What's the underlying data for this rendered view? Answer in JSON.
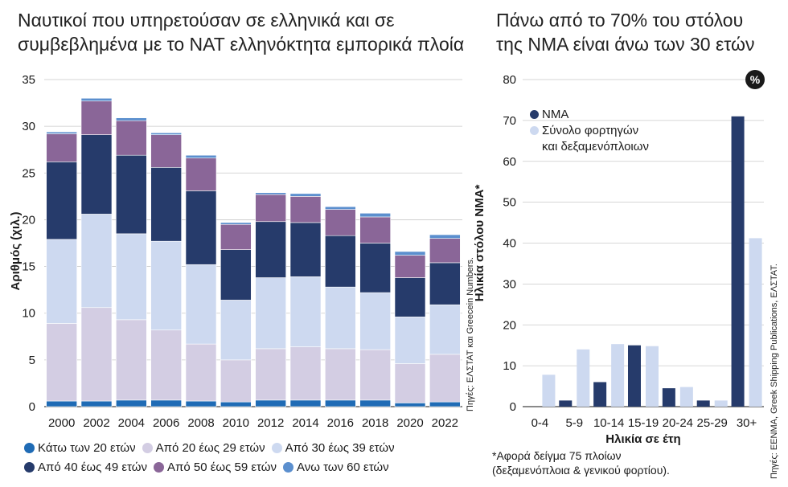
{
  "left": {
    "title_line1": "Ναυτικοί που υπηρετούσαν σε ελληνικά και σε",
    "title_line2": "συμβεβλημένα με το ΝΑΤ ελληνόκτητα εμπορικά πλοία",
    "source": "Πηγές: ΕΛΣΤΑΤ και Greecein Numbers."
  },
  "right": {
    "title_line1": "Πάνω  από το 70% του στόλου",
    "title_line2": "της ΝΜΑ είναι άνω των 30 ετών",
    "badge": "%",
    "note_line1": "*Αφορά δείγμα 75 πλοίων",
    "note_line2": "(δεξαμενόπλοια & γενικού φορτίου).",
    "source": "Πηγές: EENMA, Greek Shipping Publications, ΕΛΣΤΑΤ.",
    "legend_line1": "ΝΜΑ",
    "legend_line2a": "Σύνολο φορτηγών",
    "legend_line2b": "και δεξαμενόπλοιων"
  },
  "colors": {
    "lt20": "#1f6bb5",
    "20_29": "#d3cde3",
    "30_39": "#cdd9f0",
    "40_49": "#263b6b",
    "50_59": "#8a6698",
    "gt60": "#5b8fce",
    "nma": "#263b6b",
    "total": "#cdd9f0"
  },
  "chart_data": [
    {
      "type": "bar",
      "stacked": true,
      "title": "Ναυτικοί που υπηρετούσαν σε ελληνικά και σε συμβεβλημένα με το ΝΑΤ ελληνόκτητα εμπορικά πλοία",
      "ylabel": "Αριθμός (χιλ.)",
      "xlabel": "",
      "ylim": [
        0,
        35
      ],
      "yticks": [
        0,
        5,
        10,
        15,
        20,
        25,
        30,
        35
      ],
      "grid": true,
      "categories": [
        "2000",
        "2002",
        "2004",
        "2006",
        "2008",
        "2010",
        "2012",
        "2014",
        "2016",
        "2018",
        "2020",
        "2022"
      ],
      "series": [
        {
          "name": "Κάτω των 20 ετών",
          "key": "lt20",
          "values": [
            0.6,
            0.6,
            0.7,
            0.7,
            0.6,
            0.5,
            0.7,
            0.7,
            0.7,
            0.7,
            0.4,
            0.5
          ]
        },
        {
          "name": "Από 20 έως 29 ετών",
          "key": "20_29",
          "values": [
            8.3,
            10.0,
            8.6,
            7.5,
            6.1,
            4.5,
            5.5,
            5.7,
            5.5,
            5.4,
            4.2,
            5.1
          ]
        },
        {
          "name": "Από 30 έως 39 ετών",
          "key": "30_39",
          "values": [
            9.0,
            10.0,
            9.2,
            9.5,
            8.5,
            6.4,
            7.6,
            7.5,
            6.6,
            6.1,
            5.0,
            5.3
          ]
        },
        {
          "name": "Από 40 έως 49 ετών",
          "key": "40_49",
          "values": [
            8.3,
            8.5,
            8.4,
            7.9,
            7.9,
            5.4,
            6.0,
            5.8,
            5.5,
            5.3,
            4.2,
            4.5
          ]
        },
        {
          "name": "Από 50 έως 59 ετών",
          "key": "50_59",
          "values": [
            3.0,
            3.6,
            3.7,
            3.5,
            3.5,
            2.7,
            2.9,
            2.8,
            2.8,
            2.8,
            2.4,
            2.6
          ]
        },
        {
          "name": "Ανω των 60 ετών",
          "key": "gt60",
          "values": [
            0.2,
            0.3,
            0.3,
            0.2,
            0.3,
            0.2,
            0.2,
            0.3,
            0.3,
            0.4,
            0.4,
            0.4
          ]
        }
      ],
      "legend": "bottom"
    },
    {
      "type": "bar",
      "title": "Πάνω  από το 70% του στόλου της ΝΜΑ είναι άνω των 30 ετών",
      "xlabel": "Ηλικία σε έτη",
      "ylabel": "Ηλικία στόλου ΝΜΑ*",
      "ylim": [
        0,
        80
      ],
      "yticks": [
        0,
        10,
        20,
        30,
        40,
        50,
        60,
        70,
        80
      ],
      "grid": true,
      "categories": [
        "0-4",
        "5-9",
        "10-14",
        "15-19",
        "20-24",
        "25-29",
        "30+"
      ],
      "series": [
        {
          "name": "ΝΜΑ",
          "key": "nma",
          "values": [
            0,
            1.5,
            6.0,
            15.0,
            4.5,
            1.5,
            71.0
          ]
        },
        {
          "name": "Σύνολο φορτηγών και δεξαμενόπλοιων",
          "key": "total",
          "values": [
            7.8,
            14.0,
            15.3,
            14.8,
            4.8,
            1.5,
            41.2
          ]
        }
      ],
      "legend": "top-left"
    }
  ]
}
